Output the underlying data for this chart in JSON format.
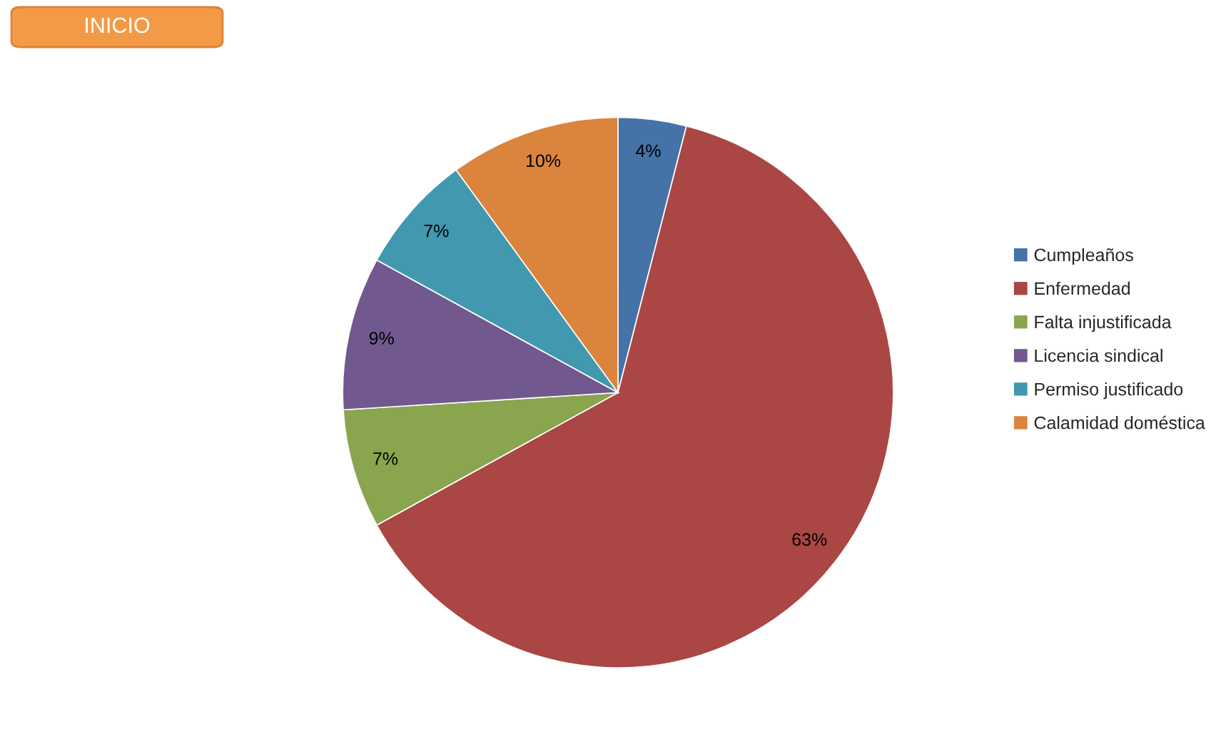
{
  "chart_data": {
    "type": "pie",
    "categories": [
      "Cumpleaños",
      "Enfermedad",
      "Falta injustificada",
      "Licencia sindical",
      "Permiso justificado",
      "Calamidad doméstica"
    ],
    "values": [
      4,
      63,
      7,
      9,
      7,
      10
    ],
    "value_labels": [
      "4%",
      "63%",
      "7%",
      "9%",
      "7%",
      "10%"
    ],
    "colors": [
      "#4572a7",
      "#aa4643",
      "#89a54e",
      "#71588f",
      "#4198af",
      "#db843d"
    ],
    "legend": "right",
    "annotations": [
      "INICIO"
    ]
  }
}
